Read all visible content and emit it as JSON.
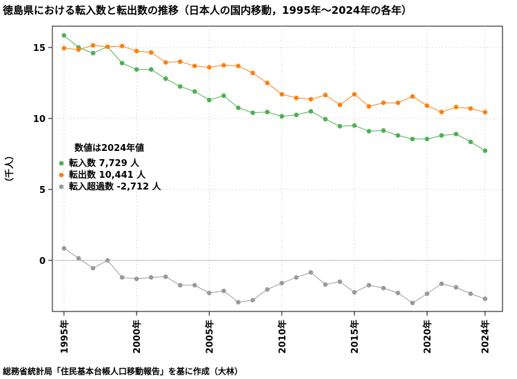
{
  "title": "徳島県における転入数と転出数の推移（日本人の国内移動，1995年～2024年の各年）",
  "source": "総務省統計局「住民基本台帳人口移動報告」を基に作成（大林）",
  "chart_data": {
    "type": "line",
    "title": "徳島県における転入数と転出数の推移（日本人の国内移動，1995年～2024年の各年）",
    "ylabel": "（千人）",
    "xlabel": "",
    "ylim": [
      -3.6,
      16.5
    ],
    "xlim": [
      1994.2,
      2025.2
    ],
    "yticks": [
      0,
      5,
      10,
      15
    ],
    "xticks": [
      1995,
      2000,
      2005,
      2010,
      2015,
      2020,
      2024
    ],
    "xtick_labels": [
      "1995年",
      "2000年",
      "2005年",
      "2010年",
      "2015年",
      "2020年",
      "2024年"
    ],
    "grid": true,
    "legend_title": "数値は2024年値",
    "legend_position": "left-middle",
    "x": [
      1995,
      1996,
      1997,
      1998,
      1999,
      2000,
      2001,
      2002,
      2003,
      2004,
      2005,
      2006,
      2007,
      2008,
      2009,
      2010,
      2011,
      2012,
      2013,
      2014,
      2015,
      2016,
      2017,
      2018,
      2019,
      2020,
      2021,
      2022,
      2023,
      2024
    ],
    "series": [
      {
        "name": "転入数",
        "legend_label": "転入数 7,729 人",
        "color": "#4caf50",
        "values": [
          15.85,
          15.0,
          14.6,
          15.05,
          13.9,
          13.45,
          13.45,
          12.8,
          12.25,
          11.9,
          11.3,
          11.6,
          10.75,
          10.4,
          10.45,
          10.15,
          10.25,
          10.5,
          9.95,
          9.45,
          9.5,
          9.1,
          9.15,
          8.8,
          8.55,
          8.55,
          8.8,
          8.9,
          8.35,
          7.729
        ]
      },
      {
        "name": "転出数",
        "legend_label": "転出数 10,441 人",
        "color": "#ff7f0e",
        "values": [
          14.95,
          14.85,
          15.15,
          15.05,
          15.1,
          14.75,
          14.65,
          13.95,
          14.0,
          13.7,
          13.6,
          13.75,
          13.7,
          13.2,
          12.5,
          11.7,
          11.45,
          11.35,
          11.65,
          10.95,
          11.7,
          10.85,
          11.1,
          11.1,
          11.55,
          10.9,
          10.45,
          10.8,
          10.7,
          10.441
        ]
      },
      {
        "name": "転入超過数",
        "legend_label": "転入超過数 -2,712 人",
        "color": "#999999",
        "values": [
          0.85,
          0.15,
          -0.55,
          0.0,
          -1.2,
          -1.3,
          -1.2,
          -1.15,
          -1.75,
          -1.75,
          -2.3,
          -2.15,
          -2.95,
          -2.8,
          -2.05,
          -1.6,
          -1.2,
          -0.85,
          -1.7,
          -1.5,
          -2.25,
          -1.75,
          -1.95,
          -2.3,
          -3.0,
          -2.35,
          -1.65,
          -1.9,
          -2.35,
          -2.712
        ]
      }
    ]
  }
}
